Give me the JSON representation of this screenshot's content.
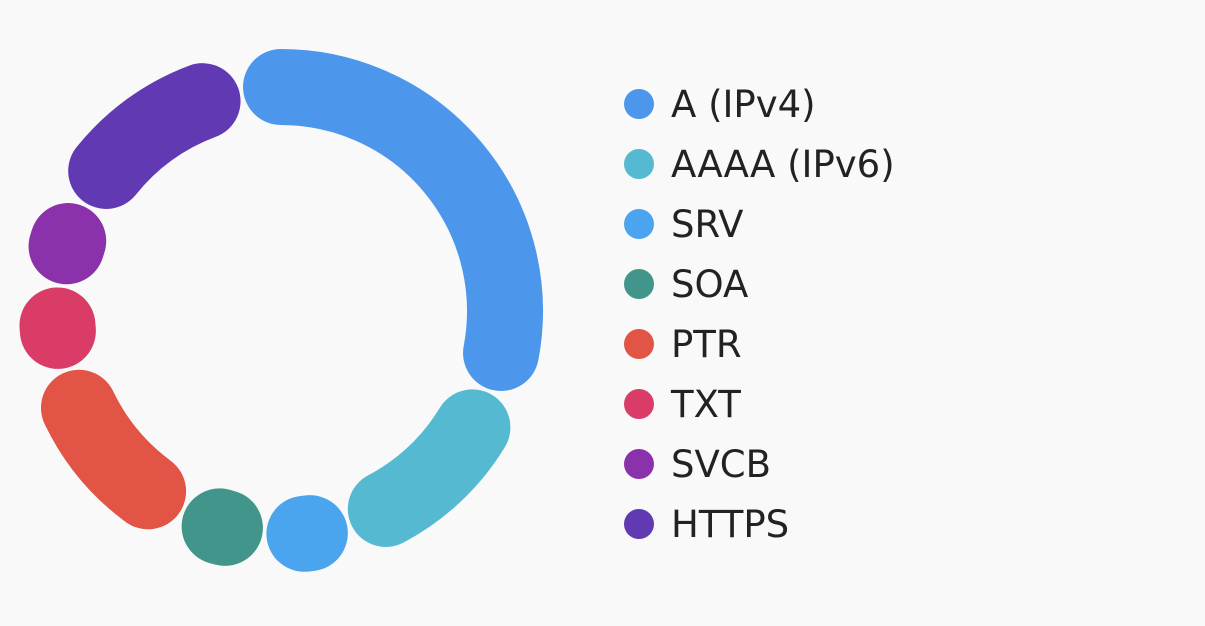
{
  "chart_data": {
    "type": "pie",
    "variant": "donut",
    "title": "",
    "legend_position": "right",
    "categories": [
      "A (IPv4)",
      "AAAA (IPv6)",
      "SRV",
      "SOA",
      "PTR",
      "TXT",
      "SVCB",
      "HTTPS"
    ],
    "values": [
      36,
      11,
      0.5,
      0.5,
      10,
      0.5,
      0.5,
      11
    ],
    "colors": [
      "#4c96eb",
      "#56b9d2",
      "#4aa5ee",
      "#41958a",
      "#e25445",
      "#d83c67",
      "#8c31ac",
      "#6139b3"
    ]
  }
}
